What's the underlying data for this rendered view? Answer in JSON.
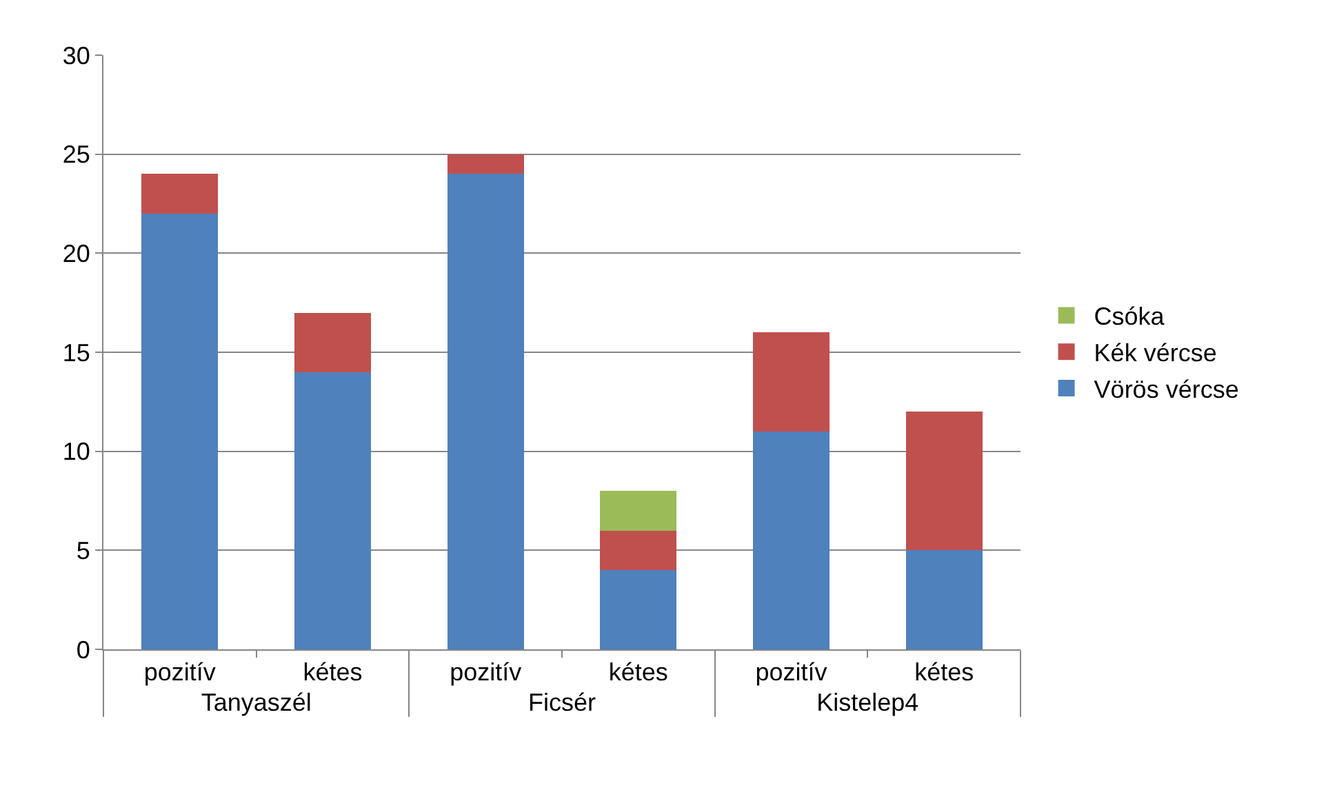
{
  "chart_data": {
    "type": "bar",
    "stacked": true,
    "categories": [
      "pozitív",
      "kétes",
      "pozitív",
      "kétes",
      "pozitív",
      "kétes"
    ],
    "annotations": [
      "Tanyaszél",
      "Ficsér",
      "Kistelep4"
    ],
    "series": [
      {
        "name": "Vörös vércse",
        "color": "#4f81bd",
        "values": [
          22,
          14,
          24,
          4,
          11,
          5
        ]
      },
      {
        "name": "Kék vércse",
        "color": "#c0504d",
        "values": [
          2,
          3,
          1,
          2,
          5,
          7
        ]
      },
      {
        "name": "Csóka",
        "color": "#9bbb59",
        "values": [
          0,
          0,
          0,
          2,
          0,
          0
        ]
      }
    ],
    "ylim": [
      0,
      30
    ],
    "yticks": [
      0,
      5,
      10,
      15,
      20,
      25,
      30
    ],
    "grid": "y",
    "legend": "right"
  }
}
